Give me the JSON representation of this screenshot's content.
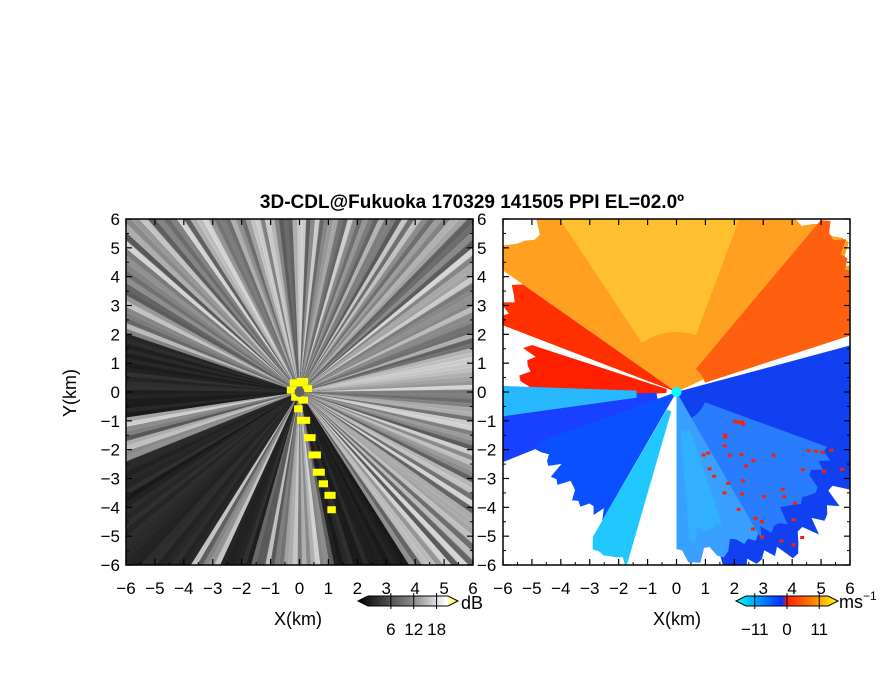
{
  "title": "3D-CDL@Fukuoka 170329 141505 PPI EL=02.0º",
  "chart_data": [
    {
      "type": "heatmap",
      "panel": "reflectivity",
      "xlabel": "X(km)",
      "ylabel": "Y(km)",
      "xlim": [
        -6,
        6
      ],
      "ylim": [
        -6,
        6
      ],
      "x_ticks": [
        "−6",
        "−5",
        "−4",
        "−3",
        "−2",
        "−1",
        "0",
        "1",
        "2",
        "3",
        "4",
        "5",
        "6"
      ],
      "y_ticks": [
        "6",
        "5",
        "4",
        "3",
        "2",
        "1",
        "0",
        "−1",
        "−2",
        "−3",
        "−4",
        "−5",
        "−6"
      ],
      "colorbar": {
        "unit": "dB",
        "tick_labels": [
          "6",
          "12",
          "18"
        ],
        "tick_values": [
          6,
          12,
          18
        ],
        "range": [
          0,
          21
        ],
        "colors": [
          "#000000",
          "#3a3a3a",
          "#7a7a7a",
          "#b4b4b4",
          "#e6e6e6",
          "#ffffff",
          "#ffff00"
        ]
      },
      "colormap": "grayscale (black → white), yellow = saturated",
      "background_color": "#2b2b2b",
      "near_field_color": "#ffff00",
      "shadow_sectors_deg": [
        [
          148,
          168
        ],
        [
          196,
          204
        ],
        [
          212,
          248
        ],
        [
          262,
          288
        ]
      ]
    },
    {
      "type": "heatmap",
      "panel": "doppler_velocity",
      "xlabel": "X(km)",
      "xlim": [
        -6,
        6
      ],
      "ylim": [
        -6,
        6
      ],
      "x_ticks": [
        "−6",
        "−5",
        "−4",
        "−3",
        "−2",
        "−1",
        "0",
        "1",
        "2",
        "3",
        "4",
        "5",
        "6"
      ],
      "y_ticks": [
        "6",
        "5",
        "4",
        "3",
        "2",
        "1",
        "0",
        "−1",
        "−2",
        "−3",
        "−4",
        "−5",
        "−6"
      ],
      "colorbar": {
        "unit": "ms",
        "unit_exponent": "−1",
        "tick_labels": [
          "−11",
          "0",
          "11"
        ],
        "tick_values": [
          -11,
          0,
          11
        ],
        "range": [
          -14,
          14
        ],
        "colors": [
          "#00ffff",
          "#00a0ff",
          "#0040ff",
          "#2020c0",
          "#ff2000",
          "#ff6000",
          "#ffa000",
          "#ffff00"
        ]
      },
      "colormap": "cyan → blue (negative), red → yellow (positive)",
      "missing_color": "#ffffff",
      "radar_marker_color": "#00ffff"
    }
  ]
}
